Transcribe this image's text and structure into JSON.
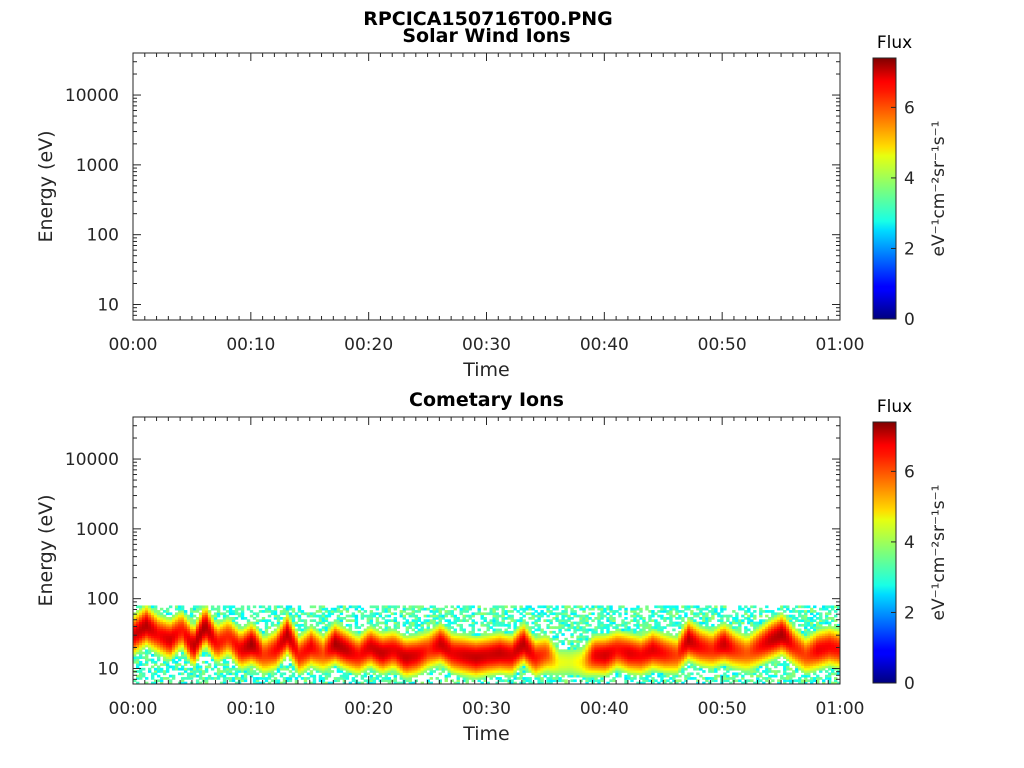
{
  "figure_title": "RPCICA150716T00.PNG",
  "chart_data": [
    {
      "type": "heatmap",
      "title": "Solar Wind Ions",
      "xlabel": "Time",
      "ylabel": "Energy (eV)",
      "x_ticks": [
        "00:00",
        "00:10",
        "00:20",
        "00:30",
        "00:40",
        "00:50",
        "01:00"
      ],
      "y_ticks": [
        "10",
        "100",
        "1000",
        "10000"
      ],
      "y_scale": "log",
      "ylim": [
        6,
        40000
      ],
      "xlim_minutes": [
        0,
        60
      ],
      "colorbar": {
        "title": "Flux",
        "label": "eV⁻¹cm⁻²sr⁻¹s⁻¹",
        "ticks": [
          "0",
          "2",
          "4",
          "6"
        ],
        "range": [
          0,
          7.4
        ]
      },
      "flux_band": []
    },
    {
      "type": "heatmap",
      "title": "Cometary Ions",
      "xlabel": "Time",
      "ylabel": "Energy (eV)",
      "x_ticks": [
        "00:00",
        "00:10",
        "00:20",
        "00:30",
        "00:40",
        "00:50",
        "01:00"
      ],
      "y_ticks": [
        "10",
        "100",
        "1000",
        "10000"
      ],
      "y_scale": "log",
      "ylim": [
        6,
        40000
      ],
      "xlim_minutes": [
        0,
        60
      ],
      "colorbar": {
        "title": "Flux",
        "label": "eV⁻¹cm⁻²sr⁻¹s⁻¹",
        "ticks": [
          "0",
          "2",
          "4",
          "6"
        ],
        "range": [
          0,
          7.4
        ]
      },
      "noise_max_energy_eV": 80,
      "flux_band": [
        {
          "t": 0,
          "peak_eV": 30,
          "flux": 6.8
        },
        {
          "t": 1,
          "peak_eV": 40,
          "flux": 7.0
        },
        {
          "t": 2,
          "peak_eV": 30,
          "flux": 6.5
        },
        {
          "t": 3,
          "peak_eV": 25,
          "flux": 6.8
        },
        {
          "t": 4,
          "peak_eV": 35,
          "flux": 6.3
        },
        {
          "t": 5,
          "peak_eV": 20,
          "flux": 6.9
        },
        {
          "t": 6,
          "peak_eV": 40,
          "flux": 7.1
        },
        {
          "t": 7,
          "peak_eV": 22,
          "flux": 6.4
        },
        {
          "t": 8,
          "peak_eV": 28,
          "flux": 6.2
        },
        {
          "t": 9,
          "peak_eV": 18,
          "flux": 6.6
        },
        {
          "t": 10,
          "peak_eV": 22,
          "flux": 7.2
        },
        {
          "t": 11,
          "peak_eV": 15,
          "flux": 6.0
        },
        {
          "t": 12,
          "peak_eV": 18,
          "flux": 6.5
        },
        {
          "t": 13,
          "peak_eV": 30,
          "flux": 7.0
        },
        {
          "t": 14,
          "peak_eV": 15,
          "flux": 6.3
        },
        {
          "t": 15,
          "peak_eV": 20,
          "flux": 6.6
        },
        {
          "t": 16,
          "peak_eV": 16,
          "flux": 5.9
        },
        {
          "t": 17,
          "peak_eV": 22,
          "flux": 7.1
        },
        {
          "t": 18,
          "peak_eV": 18,
          "flux": 6.9
        },
        {
          "t": 19,
          "peak_eV": 15,
          "flux": 6.4
        },
        {
          "t": 20,
          "peak_eV": 20,
          "flux": 6.8
        },
        {
          "t": 21,
          "peak_eV": 16,
          "flux": 6.9
        },
        {
          "t": 22,
          "peak_eV": 18,
          "flux": 6.6
        },
        {
          "t": 23,
          "peak_eV": 14,
          "flux": 6.9
        },
        {
          "t": 24,
          "peak_eV": 15,
          "flux": 6.7
        },
        {
          "t": 25,
          "peak_eV": 18,
          "flux": 6.2
        },
        {
          "t": 26,
          "peak_eV": 22,
          "flux": 6.9
        },
        {
          "t": 27,
          "peak_eV": 16,
          "flux": 6.6
        },
        {
          "t": 28,
          "peak_eV": 15,
          "flux": 6.8
        },
        {
          "t": 29,
          "peak_eV": 14,
          "flux": 6.9
        },
        {
          "t": 30,
          "peak_eV": 15,
          "flux": 6.8
        },
        {
          "t": 31,
          "peak_eV": 16,
          "flux": 6.9
        },
        {
          "t": 32,
          "peak_eV": 15,
          "flux": 6.7
        },
        {
          "t": 33,
          "peak_eV": 22,
          "flux": 7.0
        },
        {
          "t": 34,
          "peak_eV": 14,
          "flux": 6.4
        },
        {
          "t": 35,
          "peak_eV": 16,
          "flux": 6.0
        },
        {
          "t": 36,
          "peak_eV": 12,
          "flux": 4.5
        },
        {
          "t": 37,
          "peak_eV": 12,
          "flux": 4.4
        },
        {
          "t": 38,
          "peak_eV": 12,
          "flux": 4.8
        },
        {
          "t": 39,
          "peak_eV": 15,
          "flux": 6.6
        },
        {
          "t": 40,
          "peak_eV": 15,
          "flux": 6.8
        },
        {
          "t": 41,
          "peak_eV": 18,
          "flux": 6.4
        },
        {
          "t": 42,
          "peak_eV": 16,
          "flux": 6.7
        },
        {
          "t": 43,
          "peak_eV": 15,
          "flux": 6.5
        },
        {
          "t": 44,
          "peak_eV": 18,
          "flux": 6.7
        },
        {
          "t": 45,
          "peak_eV": 16,
          "flux": 6.4
        },
        {
          "t": 46,
          "peak_eV": 15,
          "flux": 6.0
        },
        {
          "t": 47,
          "peak_eV": 25,
          "flux": 7.0
        },
        {
          "t": 48,
          "peak_eV": 20,
          "flux": 6.5
        },
        {
          "t": 49,
          "peak_eV": 18,
          "flux": 6.2
        },
        {
          "t": 50,
          "peak_eV": 22,
          "flux": 6.9
        },
        {
          "t": 51,
          "peak_eV": 18,
          "flux": 6.2
        },
        {
          "t": 52,
          "peak_eV": 16,
          "flux": 5.8
        },
        {
          "t": 53,
          "peak_eV": 20,
          "flux": 6.4
        },
        {
          "t": 54,
          "peak_eV": 25,
          "flux": 6.9
        },
        {
          "t": 55,
          "peak_eV": 30,
          "flux": 7.1
        },
        {
          "t": 56,
          "peak_eV": 20,
          "flux": 6.3
        },
        {
          "t": 57,
          "peak_eV": 15,
          "flux": 6.0
        },
        {
          "t": 58,
          "peak_eV": 18,
          "flux": 6.6
        },
        {
          "t": 59,
          "peak_eV": 20,
          "flux": 6.5
        },
        {
          "t": 60,
          "peak_eV": 18,
          "flux": 6.4
        }
      ]
    }
  ]
}
